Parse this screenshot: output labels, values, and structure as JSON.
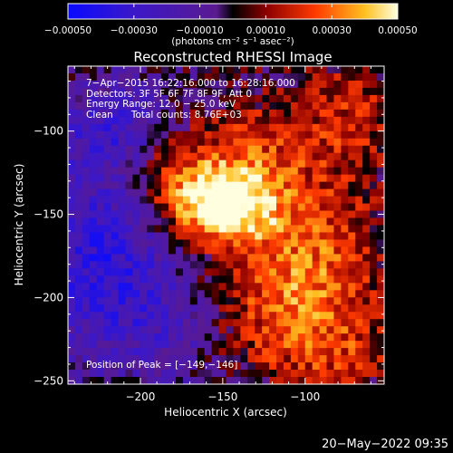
{
  "chart_data": {
    "type": "heatmap",
    "title": "Reconstructed RHESSI Image",
    "xlabel": "Heliocentric X (arcsec)",
    "ylabel": "Heliocentric Y (arcsec)",
    "xlim": [
      -244,
      -52
    ],
    "ylim": [
      -252,
      -61
    ],
    "xticks": [
      -200,
      -150,
      -100
    ],
    "xtick_labels": [
      "−200",
      "−150",
      "−100"
    ],
    "yticks": [
      -100,
      -150,
      -200,
      -250
    ],
    "ytick_labels": [
      "−100",
      "−150",
      "−200",
      "−250"
    ],
    "colorbar": {
      "range": [
        -0.0005,
        0.0005
      ],
      "ticks": [
        -0.0005,
        -0.0003,
        -0.0001,
        0.0001,
        0.0003,
        0.0005
      ],
      "tick_labels": [
        "−0.00050",
        "−0.00030",
        "−0.00010",
        "0.00010",
        "0.00030",
        "0.00050"
      ],
      "unit_label": "(photons cm⁻² s⁻¹ asec⁻²)"
    },
    "peak": {
      "x": -149,
      "y": -146
    }
  },
  "annotations": {
    "time": "7−Apr−2015 16:22:16.000 to 16:28:16.000",
    "detectors": "Detectors: 3F 5F 6F 7F 8F 9F, Att 0",
    "energy": "Energy Range: 12.0 − 25.0 keV",
    "clean": "Clean      Total counts: 8.76E+03",
    "peak": "Position of Peak = [−149,−146]"
  },
  "footer": {
    "date": "20−May−2022 09:35"
  }
}
